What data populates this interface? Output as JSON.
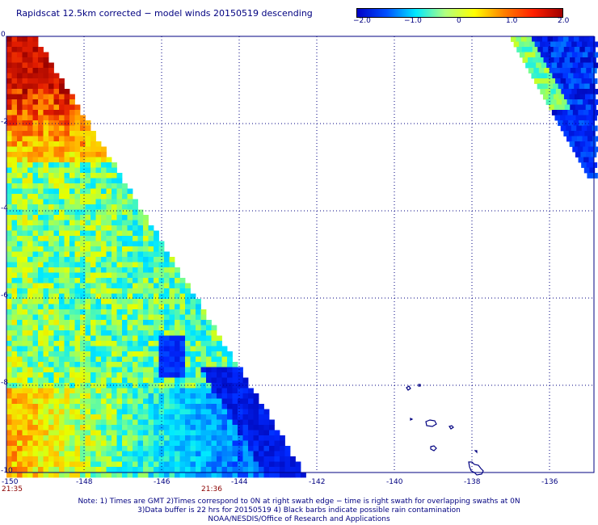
{
  "title": "Rapidscat 12.5km corrected − model winds 20150519 descending",
  "colorbar": {
    "labels": [
      "−2.0",
      "−1.0",
      "0",
      "1.0",
      "2.0"
    ],
    "stops": [
      "#0000c8",
      "#0050ff",
      "#00e8ff",
      "#b0ff80",
      "#ffff00",
      "#ff8000",
      "#ff2000",
      "#a00000"
    ]
  },
  "axes": {
    "x_ticks": [
      "-150",
      "-148",
      "-146",
      "-144",
      "-142",
      "-140",
      "-138",
      "-136"
    ],
    "y_ticks": [
      "0",
      "-2",
      "-4",
      "-6",
      "-8",
      "-10"
    ]
  },
  "times": [
    "21:35",
    "21:36"
  ],
  "notes": [
    "Note: 1) Times are GMT 2)Times correspond to 0N at right swath edge − time is right swath for overlapping swaths at 0N",
    "3)Data buffer is 22 hrs for 20150519 4) Black barbs indicate possible rain contamination",
    "NOAA/NESDIS/Office of Research and Applications"
  ],
  "colors": {
    "grid": "#000080",
    "coast": "#000080",
    "time_label": "#8b0000"
  }
}
